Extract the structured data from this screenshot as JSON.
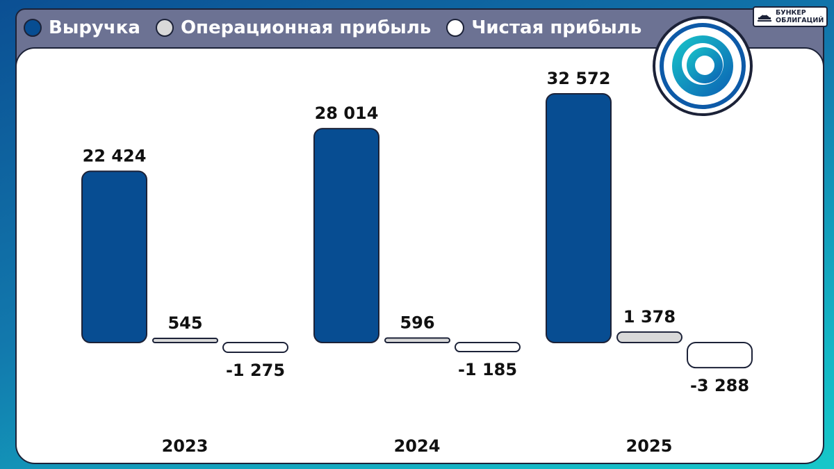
{
  "legend": [
    {
      "label": "Выручка",
      "color": "#074d92"
    },
    {
      "label": "Операционная прибыль",
      "color": "#d9d9d9"
    },
    {
      "label": "Чистая прибыль",
      "color": "#ffffff"
    }
  ],
  "brand": {
    "line1": "БУНКЕР",
    "line2": "ОБЛИГАЦИЙ"
  },
  "logo_icon": "company-ring-logo-icon",
  "chart_data": {
    "type": "bar",
    "categories": [
      "2023",
      "2024",
      "2025"
    ],
    "series": [
      {
        "name": "Выручка",
        "color": "#074d92",
        "values": [
          22424,
          28014,
          32572
        ],
        "labels": [
          "22 424",
          "28 014",
          "32 572"
        ]
      },
      {
        "name": "Операционная прибыль",
        "color": "#d9d9d9",
        "values": [
          545,
          596,
          1378
        ],
        "labels": [
          "545",
          "596",
          "1 378"
        ]
      },
      {
        "name": "Чистая прибыль",
        "color": "#ffffff",
        "values": [
          -1275,
          -1185,
          -3288
        ],
        "labels": [
          "-1 275",
          "-1 185",
          "-3 288"
        ]
      }
    ],
    "legend_position": "top-left",
    "grid": false
  }
}
